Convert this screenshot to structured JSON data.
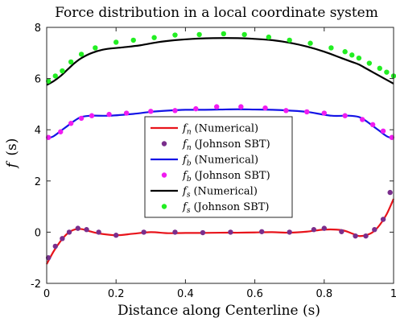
{
  "chart_data": {
    "type": "line",
    "title": "Force distribution in a local coordinate system",
    "xlabel": "Distance along Centerline (s)",
    "ylabel_italic": "f",
    "ylabel_rest": "(s)",
    "xlim": [
      0,
      1
    ],
    "ylim": [
      -2,
      8
    ],
    "xticks": [
      0,
      0.2,
      0.4,
      0.6,
      0.8,
      1
    ],
    "xtick_labels": [
      "0",
      "0.2",
      "0.4",
      "0.6",
      "0.8",
      "1"
    ],
    "yticks": [
      -2,
      0,
      2,
      4,
      6,
      8
    ],
    "ytick_labels": [
      "-2",
      "0",
      "2",
      "4",
      "6",
      "8"
    ],
    "grid": false,
    "legend_position": "center",
    "series": [
      {
        "name": "f_n (Numerical)",
        "label_sym": "f",
        "label_sub": "n",
        "label_rest": "(Numerical)",
        "kind": "line",
        "color": "#e8141b",
        "x": [
          0,
          0.02,
          0.04,
          0.06,
          0.08,
          0.1,
          0.12,
          0.15,
          0.2,
          0.25,
          0.3,
          0.35,
          0.4,
          0.45,
          0.5,
          0.55,
          0.6,
          0.65,
          0.7,
          0.75,
          0.8,
          0.85,
          0.88,
          0.9,
          0.92,
          0.94,
          0.96,
          0.98,
          1.0
        ],
        "y": [
          -1.25,
          -0.75,
          -0.35,
          -0.05,
          0.1,
          0.12,
          0.05,
          -0.05,
          -0.12,
          -0.06,
          0.0,
          -0.04,
          -0.03,
          -0.03,
          -0.02,
          -0.02,
          -0.01,
          0.0,
          -0.02,
          0.02,
          0.1,
          0.08,
          -0.05,
          -0.15,
          -0.12,
          0.0,
          0.28,
          0.7,
          1.3
        ]
      },
      {
        "name": "f_n (Johnson SBT)",
        "label_sym": "f",
        "label_sub": "n",
        "label_rest": "(Johnson SBT)",
        "kind": "scatter",
        "color": "#7a2e8c",
        "x": [
          0.005,
          0.025,
          0.045,
          0.065,
          0.09,
          0.115,
          0.15,
          0.2,
          0.28,
          0.37,
          0.45,
          0.53,
          0.62,
          0.7,
          0.77,
          0.8,
          0.85,
          0.89,
          0.92,
          0.945,
          0.97,
          0.99
        ],
        "y": [
          -1.0,
          -0.55,
          -0.25,
          0.0,
          0.15,
          0.1,
          0.0,
          -0.12,
          0.0,
          0.0,
          -0.02,
          0.0,
          0.02,
          0.0,
          0.1,
          0.15,
          0.02,
          -0.15,
          -0.15,
          0.1,
          0.5,
          1.55
        ]
      },
      {
        "name": "f_b (Numerical)",
        "label_sym": "f",
        "label_sub": "b",
        "label_rest": "(Numerical)",
        "kind": "line",
        "color": "#1414e6",
        "x": [
          0,
          0.02,
          0.04,
          0.06,
          0.08,
          0.1,
          0.13,
          0.18,
          0.25,
          0.3,
          0.35,
          0.4,
          0.45,
          0.5,
          0.55,
          0.6,
          0.65,
          0.7,
          0.75,
          0.82,
          0.87,
          0.9,
          0.92,
          0.94,
          0.96,
          0.98,
          1.0
        ],
        "y": [
          3.65,
          3.75,
          3.95,
          4.15,
          4.35,
          4.5,
          4.55,
          4.55,
          4.62,
          4.7,
          4.75,
          4.78,
          4.78,
          4.79,
          4.8,
          4.79,
          4.78,
          4.75,
          4.7,
          4.55,
          4.55,
          4.5,
          4.35,
          4.15,
          3.95,
          3.75,
          3.65
        ]
      },
      {
        "name": "f_b (Johnson SBT)",
        "label_sym": "f",
        "label_sub": "b",
        "label_rest": "(Johnson SBT)",
        "kind": "scatter",
        "color": "#f01cf0",
        "x": [
          0.005,
          0.04,
          0.07,
          0.1,
          0.13,
          0.18,
          0.23,
          0.3,
          0.37,
          0.43,
          0.49,
          0.56,
          0.63,
          0.69,
          0.75,
          0.8,
          0.86,
          0.91,
          0.94,
          0.97,
          0.995
        ],
        "y": [
          3.7,
          3.92,
          4.25,
          4.45,
          4.55,
          4.6,
          4.65,
          4.72,
          4.75,
          4.82,
          4.9,
          4.9,
          4.85,
          4.75,
          4.7,
          4.65,
          4.55,
          4.4,
          4.2,
          3.95,
          3.7
        ]
      },
      {
        "name": "f_s (Numerical)",
        "label_sym": "f",
        "label_sub": "s",
        "label_rest": "(Numerical)",
        "kind": "line",
        "color": "#000000",
        "x": [
          0,
          0.02,
          0.04,
          0.06,
          0.08,
          0.1,
          0.13,
          0.17,
          0.22,
          0.27,
          0.32,
          0.37,
          0.42,
          0.48,
          0.55,
          0.6,
          0.65,
          0.7,
          0.75,
          0.8,
          0.85,
          0.88,
          0.9,
          0.92,
          0.94,
          0.96,
          0.98,
          1.0
        ],
        "y": [
          5.75,
          5.9,
          6.1,
          6.35,
          6.6,
          6.8,
          7.0,
          7.15,
          7.22,
          7.3,
          7.42,
          7.5,
          7.55,
          7.58,
          7.58,
          7.55,
          7.5,
          7.4,
          7.25,
          7.05,
          6.8,
          6.65,
          6.55,
          6.4,
          6.25,
          6.1,
          5.95,
          5.8
        ]
      },
      {
        "name": "f_s (Johnson SBT)",
        "label_sym": "f",
        "label_sub": "s",
        "label_rest": "(Johnson SBT)",
        "kind": "scatter",
        "color": "#22ee22",
        "x": [
          0.005,
          0.025,
          0.045,
          0.07,
          0.1,
          0.14,
          0.2,
          0.25,
          0.31,
          0.37,
          0.44,
          0.51,
          0.57,
          0.64,
          0.7,
          0.76,
          0.82,
          0.86,
          0.88,
          0.9,
          0.93,
          0.96,
          0.98,
          1.0
        ],
        "y": [
          5.9,
          6.1,
          6.3,
          6.65,
          6.95,
          7.2,
          7.42,
          7.5,
          7.6,
          7.7,
          7.72,
          7.75,
          7.72,
          7.62,
          7.5,
          7.38,
          7.2,
          7.05,
          6.92,
          6.8,
          6.6,
          6.4,
          6.25,
          6.1
        ]
      }
    ]
  }
}
